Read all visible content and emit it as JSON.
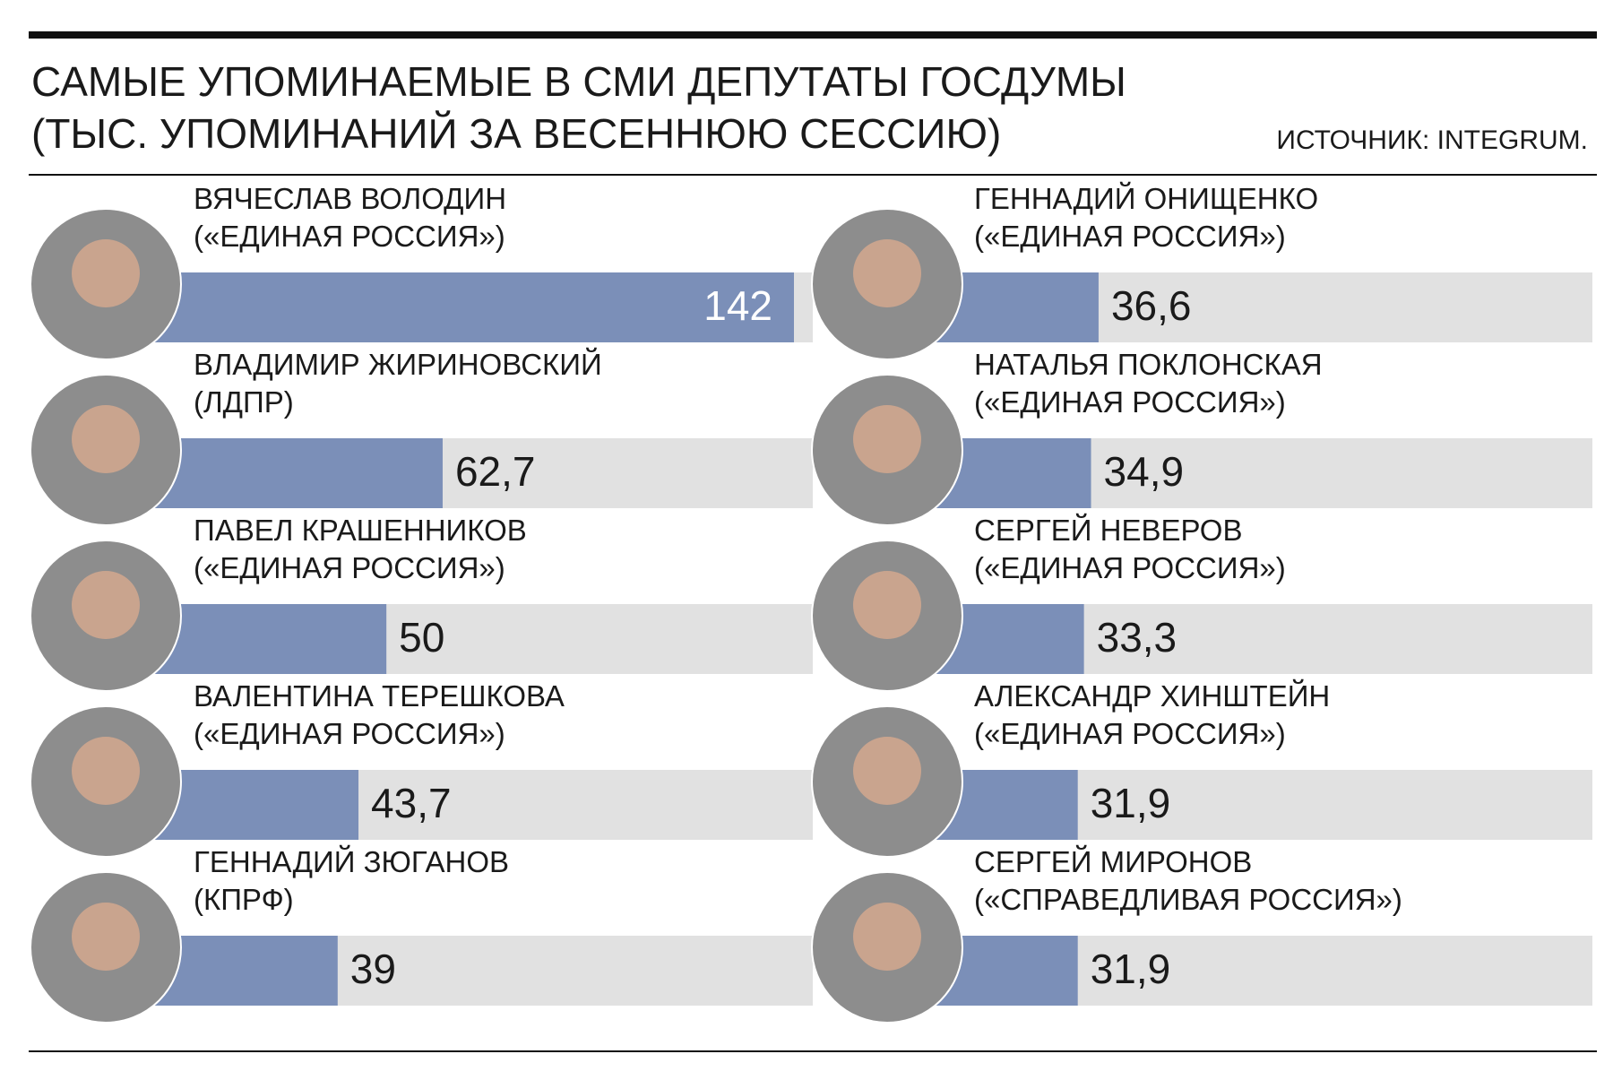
{
  "chart_data": {
    "type": "bar",
    "title": "САМЫЕ УПОМИНАЕМЫЕ В СМИ ДЕПУТАТЫ ГОСДУМЫ",
    "subtitle": "(ТЫС. УПОМИНАНИЙ ЗА ВЕСЕННЮЮ СЕССИЮ)",
    "source": "ИСТОЧНИК: INTEGRUM.",
    "categories": [
      "ВЯЧЕСЛАВ ВОЛОДИН",
      "ВЛАДИМИР ЖИРИНОВСКИЙ",
      "ПАВЕЛ КРАШЕННИКОВ",
      "ВАЛЕНТИНА ТЕРЕШКОВА",
      "ГЕННАДИЙ ЗЮГАНОВ",
      "ГЕННАДИЙ ОНИЩЕНКО",
      "НАТАЛЬЯ ПОКЛОНСКАЯ",
      "СЕРГЕЙ НЕВЕРОВ",
      "АЛЕКСАНДР ХИНШТЕЙН",
      "СЕРГЕЙ МИРОНОВ"
    ],
    "parties": [
      "(«ЕДИНАЯ РОССИЯ»)",
      "(ЛДПР)",
      "(«ЕДИНАЯ РОССИЯ»)",
      "(«ЕДИНАЯ РОССИЯ»)",
      "(КПРФ)",
      "(«ЕДИНАЯ РОССИЯ»)",
      "(«ЕДИНАЯ РОССИЯ»)",
      "(«ЕДИНАЯ РОССИЯ»)",
      "(«ЕДИНАЯ РОССИЯ»)",
      "(«СПРАВЕДЛИВАЯ РОССИЯ»)"
    ],
    "values": [
      142,
      62.7,
      50,
      43.7,
      39,
      36.6,
      34.9,
      33.3,
      31.9,
      31.9
    ],
    "value_labels": [
      "142",
      "62,7",
      "50",
      "43,7",
      "39",
      "36,6",
      "34,9",
      "33,3",
      "31,9",
      "31,9"
    ],
    "color": "#7b8fb8",
    "track_color": "#e1e1e1"
  }
}
